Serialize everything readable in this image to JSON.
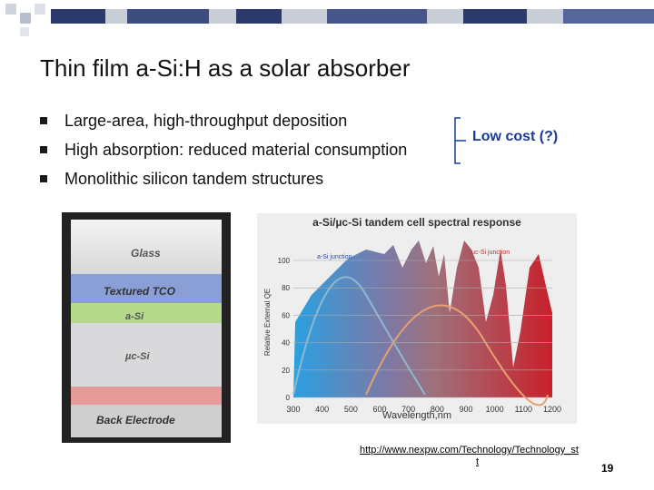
{
  "header": {
    "title": "Thin film a-Si:H as a solar absorber"
  },
  "bullets": [
    "Large-area, high-throughput deposition",
    "High absorption: reduced material consumption",
    "Monolithic silicon tandem structures"
  ],
  "bracket_note": "Low cost (?)",
  "figure_left": {
    "layers": [
      "Glass",
      "Textured TCO",
      "a-Si",
      "µc-Si",
      "Back Electrode"
    ]
  },
  "figure_right": {
    "title": "a-Si/µc-Si tandem cell spectral response",
    "y_label": "Relative External QE",
    "x_label": "Wavelength,nm",
    "yticks": [
      0,
      20,
      40,
      60,
      80,
      100
    ],
    "xticks": [
      300,
      400,
      500,
      600,
      700,
      800,
      900,
      1000,
      1100,
      1200
    ],
    "annotations": [
      "a-Si junction",
      "µc-Si junction"
    ]
  },
  "link": [
    "http://www.nexpw.com/Technology/Technology_st",
    "t"
  ],
  "page_number": "19"
}
